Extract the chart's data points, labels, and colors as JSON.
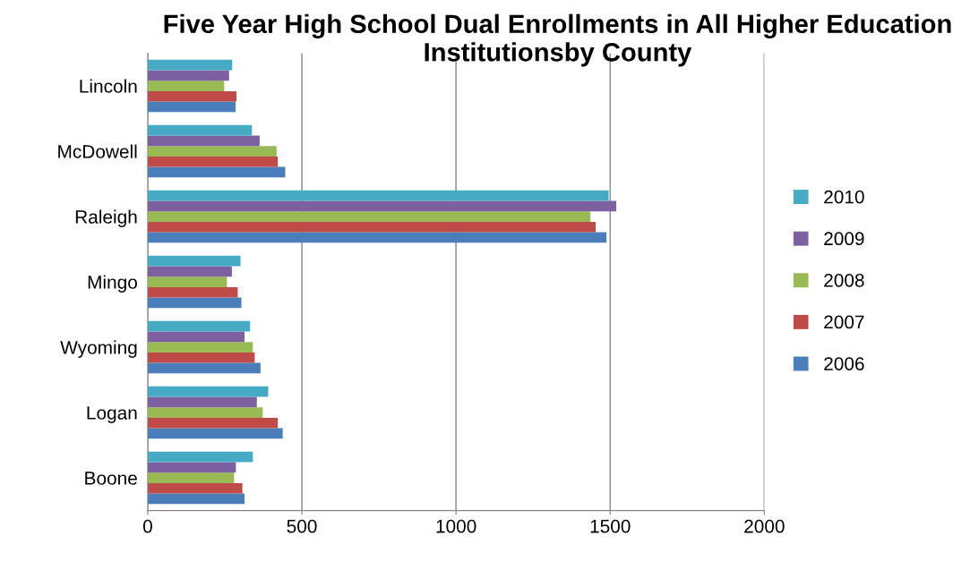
{
  "chart_data": {
    "type": "bar",
    "orientation": "horizontal",
    "title": "Five Year High School Dual Enrollments in All Higher Education Institutionsby County",
    "categories": [
      "Lincoln",
      "McDowell",
      "Raleigh",
      "Mingo",
      "Wyoming",
      "Logan",
      "Boone"
    ],
    "series": [
      {
        "name": "2006",
        "color": "#4a7ebb",
        "values": [
          285,
          446,
          1488,
          304,
          366,
          438,
          314
        ]
      },
      {
        "name": "2007",
        "color": "#be4b48",
        "values": [
          288,
          422,
          1453,
          292,
          347,
          422,
          307
        ]
      },
      {
        "name": "2008",
        "color": "#98b954",
        "values": [
          248,
          418,
          1436,
          257,
          341,
          373,
          280
        ]
      },
      {
        "name": "2009",
        "color": "#7d60a0",
        "values": [
          264,
          363,
          1520,
          273,
          314,
          354,
          286
        ]
      },
      {
        "name": "2010",
        "color": "#46aac5",
        "values": [
          274,
          338,
          1495,
          301,
          332,
          391,
          341
        ]
      }
    ],
    "xlim": [
      0,
      2000
    ],
    "xticks": [
      0,
      500,
      1000,
      1500,
      2000
    ],
    "grid": "x",
    "legend": "right"
  }
}
